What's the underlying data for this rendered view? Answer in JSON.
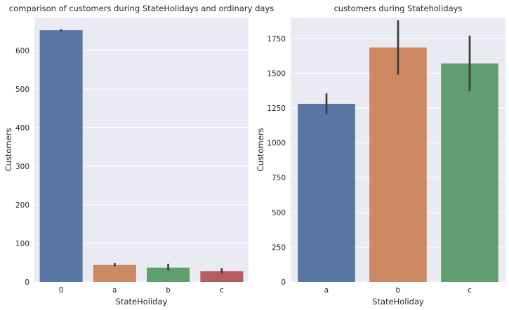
{
  "chart_data": [
    {
      "type": "bar",
      "title": "comparison of customers during StateHolidays and ordinary days",
      "xlabel": "StateHoliday",
      "ylabel": "Customers",
      "categories": [
        "0",
        "a",
        "b",
        "c"
      ],
      "values": [
        652,
        44,
        37,
        28
      ],
      "error_bars": [
        [
          649,
          655
        ],
        [
          40,
          49
        ],
        [
          30,
          47
        ],
        [
          22,
          36
        ]
      ],
      "ylim": [
        0,
        685
      ],
      "yticks": [
        0,
        100,
        200,
        300,
        400,
        500,
        600
      ],
      "colors": [
        "#5875a4",
        "#cc8963",
        "#5f9e6e",
        "#b55d60"
      ],
      "grid": true
    },
    {
      "type": "bar",
      "title": "customers during Stateholidays",
      "xlabel": "StateHoliday",
      "ylabel": "Customers",
      "categories": [
        "a",
        "b",
        "c"
      ],
      "values": [
        1280,
        1685,
        1570
      ],
      "error_bars": [
        [
          1205,
          1355
        ],
        [
          1490,
          1880
        ],
        [
          1370,
          1770
        ]
      ],
      "ylim": [
        0,
        1900
      ],
      "yticks": [
        0,
        250,
        500,
        750,
        1000,
        1250,
        1500,
        1750
      ],
      "colors": [
        "#5875a4",
        "#cc8963",
        "#5f9e6e"
      ],
      "grid": true
    }
  ]
}
